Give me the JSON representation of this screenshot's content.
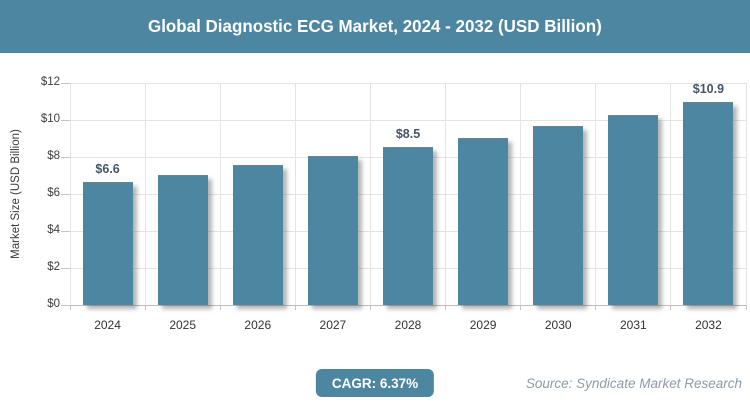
{
  "header": {
    "title": "Global Diagnostic ECG Market, 2024 - 2032 (USD Billion)"
  },
  "chart_data": {
    "type": "bar",
    "title": "Global Diagnostic ECG Market, 2024 - 2032 (USD Billion)",
    "categories": [
      "2024",
      "2025",
      "2026",
      "2027",
      "2028",
      "2029",
      "2030",
      "2031",
      "2032"
    ],
    "values": [
      6.6,
      7.0,
      7.5,
      8.0,
      8.5,
      9.0,
      9.6,
      10.2,
      10.9
    ],
    "bar_labels": [
      "$6.6",
      "",
      "",
      "",
      "$8.5",
      "",
      "",
      "",
      "$10.9"
    ],
    "xlabel": "",
    "ylabel": "Market Size (USD Billion)",
    "ylim": [
      0,
      12
    ],
    "y_tick_step": 2,
    "y_tick_prefix": "$",
    "grid": true,
    "legend": "none",
    "bar_color": "#4d86a1",
    "bar_label_color": "#44546a"
  },
  "footer": {
    "cagr_label": "CAGR: 6.37%",
    "source": "Source: Syndicate Market Research"
  },
  "colors": {
    "accent": "#4d86a1",
    "title_text": "#ffffff",
    "grid": "#e4e4e4",
    "axis": "#bdbdbd",
    "tick_text": "#3d3d3d",
    "source_text": "#8d9aa8"
  }
}
